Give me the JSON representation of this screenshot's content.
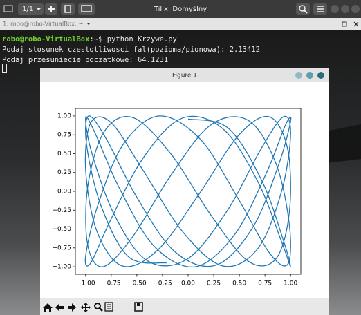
{
  "window": {
    "session": "1/1",
    "title": "Tilix: Domyślny",
    "tab": "1: robo@robo-VirtualBox: ~"
  },
  "terminal": {
    "prompt": "robo@robo-VirtualBox",
    "command": ":~$ python Krzywe.py",
    "lines": [
      "Podaj stosunek czestotliwosci fal(pozioma/pionowa): 2.13412",
      "Podaj przesuniecie poczatkowe: 64.1231"
    ]
  },
  "figure": {
    "title": "Figure 1"
  },
  "chart_data": {
    "type": "line",
    "x": [
      0,
      0.39,
      0.72,
      0.93,
      1.0,
      0.91,
      0.68,
      0.34,
      -0.06,
      -0.44,
      -0.76,
      -0.95,
      -1.0,
      -0.88,
      -0.63,
      -0.28,
      0.12,
      0.49,
      0.79,
      0.97,
      0.99,
      0.86,
      0.59,
      0.22,
      -0.17,
      -0.54,
      -0.83,
      -0.98,
      -0.98,
      -0.82,
      -0.54,
      -0.17,
      0.23,
      0.59,
      0.86,
      0.99,
      0.97,
      0.79,
      0.49,
      0.11,
      -0.29,
      -0.64,
      -0.89,
      -1.0,
      -0.95,
      -0.75,
      -0.44,
      -0.05,
      0.34,
      0.68,
      0.91,
      1.0,
      0.93,
      0.71,
      0.38,
      -0.01,
      -0.4,
      -0.72,
      -0.94,
      -1.0,
      -0.91,
      -0.67,
      -0.33,
      0.07,
      0.45,
      0.76,
      0.95,
      1.0,
      0.88,
      0.63,
      0.27,
      -0.13,
      -0.5,
      -0.8,
      -0.97,
      -0.99,
      -0.85,
      -0.58,
      -0.21
    ],
    "series": [
      {
        "color": "#1f77b4",
        "values": [
          0.96,
          0.84,
          0.14,
          -0.65,
          -1.0,
          -0.66,
          0.13,
          0.83,
          0.97,
          0.44,
          -0.39,
          -0.95,
          -0.86,
          -0.18,
          0.63,
          1.0,
          0.69,
          -0.1,
          -0.81,
          -0.97,
          -0.47,
          0.36,
          0.94,
          0.88,
          0.21,
          -0.6,
          -1.0,
          -0.71,
          0.06,
          0.79,
          0.98,
          0.5,
          -0.33,
          -0.93,
          -0.89,
          -0.25,
          0.57,
          0.99,
          0.74,
          -0.03,
          -0.77,
          -0.99,
          -0.53,
          0.29,
          0.91,
          0.91,
          0.28,
          -0.54,
          -0.99,
          -0.76,
          -0.01,
          0.75,
          0.99,
          0.56,
          -0.26,
          -0.9,
          -0.92,
          -0.31,
          0.51,
          0.98,
          0.78,
          0.04,
          -0.73,
          -1.0,
          -0.58,
          0.23,
          0.88,
          0.93,
          0.34,
          -0.48,
          -0.98,
          -0.8,
          -0.08,
          0.7,
          1.0,
          0.61,
          -0.19,
          -0.87,
          -0.95
        ]
      }
    ],
    "xlim": [
      -1.1,
      1.1
    ],
    "ylim": [
      -1.1,
      1.1
    ],
    "xticks": [
      {
        "value": -1.0,
        "label": "−1.00"
      },
      {
        "value": -0.75,
        "label": "−0.75"
      },
      {
        "value": -0.5,
        "label": "−0.50"
      },
      {
        "value": -0.25,
        "label": "−0.25"
      },
      {
        "value": 0,
        "label": "0.00"
      },
      {
        "value": 0.25,
        "label": "0.25"
      },
      {
        "value": 0.5,
        "label": "0.50"
      },
      {
        "value": 0.75,
        "label": "0.75"
      },
      {
        "value": 1.0,
        "label": "1.00"
      }
    ],
    "yticks": [
      {
        "value": -1.0,
        "label": "−1.00"
      },
      {
        "value": -0.75,
        "label": "−0.75"
      },
      {
        "value": -0.5,
        "label": "−0.50"
      },
      {
        "value": -0.25,
        "label": "−0.25"
      },
      {
        "value": 0,
        "label": "0.00"
      },
      {
        "value": 0.25,
        "label": "0.25"
      },
      {
        "value": 0.5,
        "label": "0.50"
      },
      {
        "value": 0.75,
        "label": "0.75"
      },
      {
        "value": 1.0,
        "label": "1.00"
      }
    ]
  }
}
